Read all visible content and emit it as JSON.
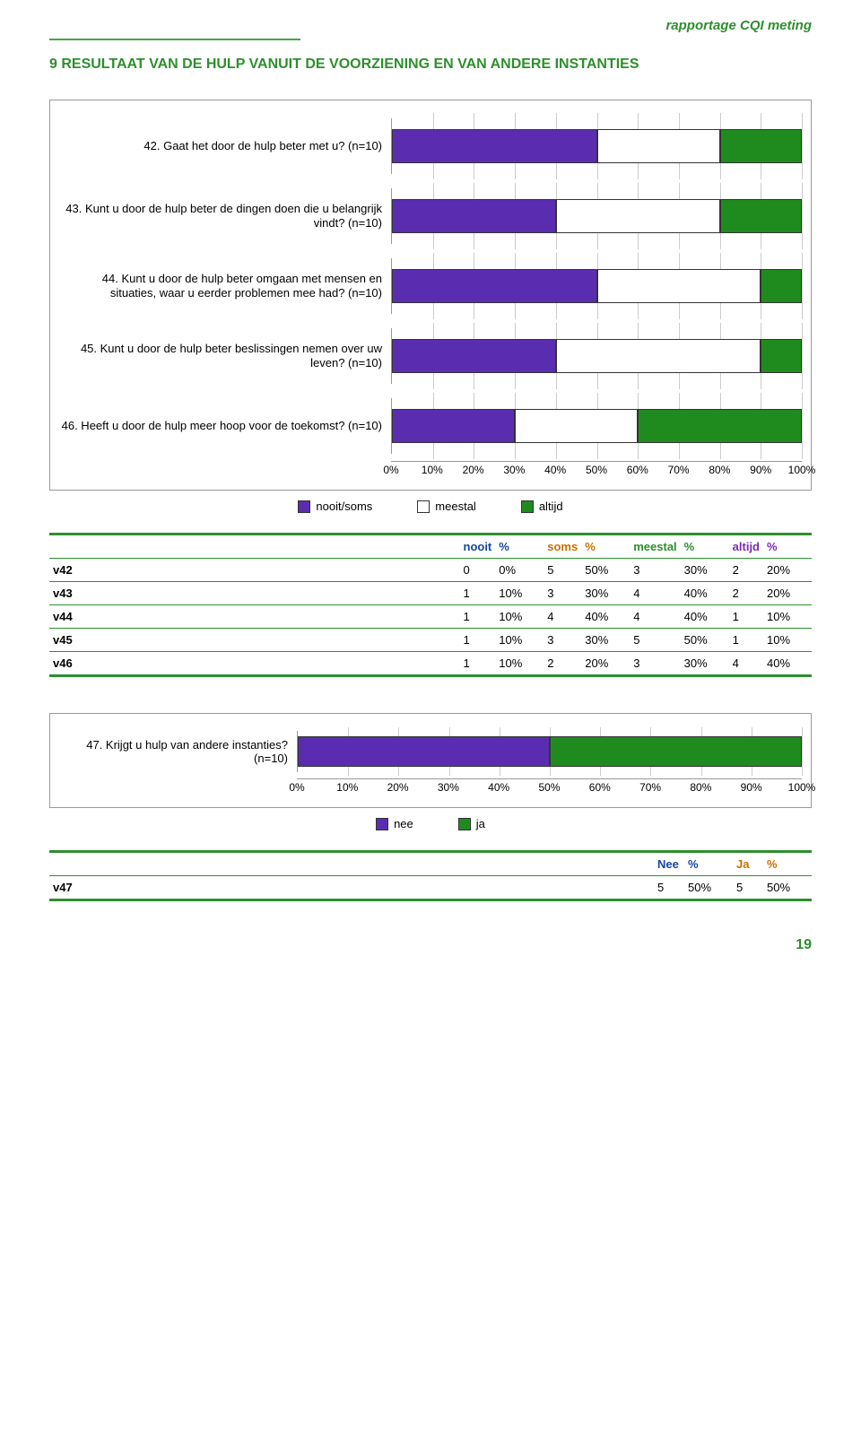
{
  "header": {
    "right_title": "rapportage CQI meting",
    "accent_color": "#2d8f2d"
  },
  "section_title": "9 RESULTAAT VAN DE HULP VANUIT DE VOORZIENING EN VAN ANDERE INSTANTIES",
  "chart1": {
    "type": "stacked-bar",
    "xticks": [
      "0%",
      "10%",
      "20%",
      "30%",
      "40%",
      "50%",
      "60%",
      "70%",
      "80%",
      "90%",
      "100%"
    ],
    "colors": {
      "nooit_soms": "#5a2db0",
      "meestal": "#ffffff",
      "altijd": "#1f8b1f"
    },
    "legend": [
      {
        "key": "nooit_soms",
        "label": "nooit/soms"
      },
      {
        "key": "meestal",
        "label": "meestal"
      },
      {
        "key": "altijd",
        "label": "altijd"
      }
    ],
    "rows": [
      {
        "label": "42. Gaat het door de hulp beter met u? (n=10)",
        "segments": [
          50,
          30,
          20
        ]
      },
      {
        "label": "43. Kunt u door de hulp beter de dingen doen die u belangrijk vindt? (n=10)",
        "segments": [
          40,
          40,
          20
        ]
      },
      {
        "label": "44. Kunt u door de hulp beter omgaan met mensen en situaties, waar u eerder problemen mee had? (n=10)",
        "segments": [
          50,
          40,
          10
        ]
      },
      {
        "label": "45. Kunt u door de hulp beter beslissingen nemen over uw leven? (n=10)",
        "segments": [
          40,
          50,
          10
        ]
      },
      {
        "label": "46. Heeft u door de hulp meer hoop voor de toekomst? (n=10)",
        "segments": [
          30,
          30,
          40
        ]
      }
    ]
  },
  "table1": {
    "headers": [
      {
        "label1": "nooit",
        "label2": "%",
        "color": "#1546a0"
      },
      {
        "label1": "soms",
        "label2": "%",
        "color": "#c96f00"
      },
      {
        "label1": "meestal",
        "label2": "%",
        "color": "#2d8f2d"
      },
      {
        "label1": "altijd",
        "label2": "%",
        "color": "#7a2bb5"
      }
    ],
    "rows": [
      {
        "id": "v42",
        "cells": [
          [
            0,
            "0%"
          ],
          [
            5,
            "50%"
          ],
          [
            3,
            "30%"
          ],
          [
            2,
            "20%"
          ]
        ]
      },
      {
        "id": "v43",
        "cells": [
          [
            1,
            "10%"
          ],
          [
            3,
            "30%"
          ],
          [
            4,
            "40%"
          ],
          [
            2,
            "20%"
          ]
        ]
      },
      {
        "id": "v44",
        "cells": [
          [
            1,
            "10%"
          ],
          [
            4,
            "40%"
          ],
          [
            4,
            "40%"
          ],
          [
            1,
            "10%"
          ]
        ]
      },
      {
        "id": "v45",
        "cells": [
          [
            1,
            "10%"
          ],
          [
            3,
            "30%"
          ],
          [
            5,
            "50%"
          ],
          [
            1,
            "10%"
          ]
        ]
      },
      {
        "id": "v46",
        "cells": [
          [
            1,
            "10%"
          ],
          [
            2,
            "20%"
          ],
          [
            3,
            "30%"
          ],
          [
            4,
            "40%"
          ]
        ]
      }
    ]
  },
  "chart2": {
    "type": "stacked-bar",
    "xticks": [
      "0%",
      "10%",
      "20%",
      "30%",
      "40%",
      "50%",
      "60%",
      "70%",
      "80%",
      "90%",
      "100%"
    ],
    "colors": {
      "nee": "#5a2db0",
      "ja": "#1f8b1f"
    },
    "legend": [
      {
        "key": "nee",
        "label": "nee"
      },
      {
        "key": "ja",
        "label": "ja"
      }
    ],
    "row": {
      "label": "47. Krijgt u hulp van andere instanties? (n=10)",
      "segments": [
        50,
        50
      ]
    }
  },
  "table2": {
    "headers": [
      {
        "label1": "Nee",
        "label2": "%",
        "color": "#1546a0"
      },
      {
        "label1": "Ja",
        "label2": "%",
        "color": "#c96f00"
      }
    ],
    "rows": [
      {
        "id": "v47",
        "cells": [
          [
            5,
            "50%"
          ],
          [
            5,
            "50%"
          ]
        ]
      }
    ]
  },
  "page_number": "19"
}
